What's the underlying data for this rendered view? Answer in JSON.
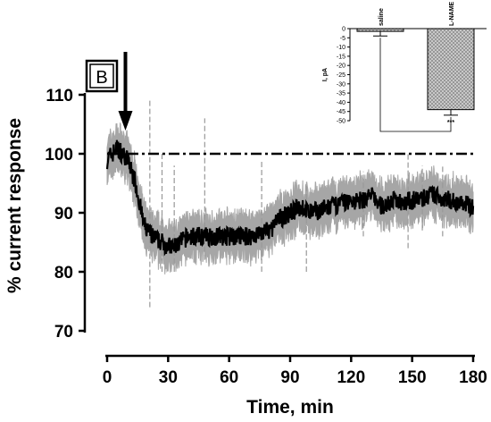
{
  "chart_data": [
    {
      "type": "line",
      "panel_label": "B",
      "xlabel": "Time, min",
      "ylabel": "% current response",
      "xlim": [
        0,
        180
      ],
      "ylim": [
        70,
        115
      ],
      "x_ticks": [
        "0",
        "30",
        "60",
        "90",
        "120",
        "150",
        "180"
      ],
      "y_ticks": [
        "70",
        "80",
        "90",
        "100",
        "110"
      ],
      "reference_line": {
        "y": 100,
        "style": "dash-dot"
      },
      "arrow_at_x": 9,
      "series": [
        {
          "x": [
            0,
            5,
            10,
            14,
            18,
            22,
            27,
            32,
            40,
            50,
            60,
            70,
            80,
            85,
            90,
            95,
            100,
            110,
            120,
            125,
            130,
            135,
            140,
            150,
            160,
            170,
            180
          ],
          "values": [
            99,
            101,
            99,
            95,
            88,
            86,
            85,
            84,
            86,
            86,
            86,
            86,
            87,
            89,
            90,
            91,
            90,
            91,
            92,
            92,
            93,
            91,
            92,
            92,
            93,
            92,
            91
          ]
        }
      ],
      "error_band": {
        "color": "#a6a6a6",
        "half_width": 3
      },
      "colors": {
        "mean": "#000000",
        "sem": "#a6a6a6",
        "dashed_spikes": "#999999"
      }
    },
    {
      "type": "bar",
      "categories": [
        "saline",
        "L-NAME"
      ],
      "values": [
        -1.5,
        -44
      ],
      "errors": [
        2.5,
        3
      ],
      "ylabel": "I, pA",
      "ylim": [
        -50,
        0
      ],
      "y_ticks": [
        "0",
        "-5",
        "-10",
        "-15",
        "-20",
        "-25",
        "-30",
        "-35",
        "-40",
        "-45",
        "-50"
      ],
      "significance": "***"
    }
  ]
}
